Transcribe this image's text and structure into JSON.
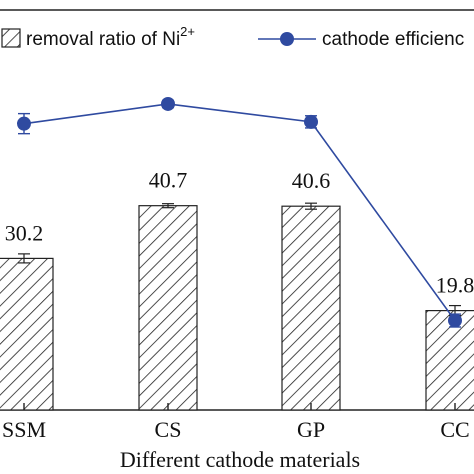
{
  "chart_data": {
    "type": "bar",
    "categories": [
      "SSM",
      "CS",
      "GP",
      "CC"
    ],
    "xlabel": "Different cathode materials",
    "ylim": [
      0,
      50
    ],
    "series": [
      {
        "name": "removal ratio of Ni",
        "name_superscript": "2+",
        "kind": "bar",
        "values": [
          30.2,
          40.7,
          40.6,
          19.8
        ],
        "errors": [
          0.9,
          0.4,
          0.6,
          1.0
        ],
        "labels": [
          "30.2",
          "40.7",
          "40.6",
          "19.8"
        ],
        "fill": "hatched"
      },
      {
        "name": "cathode efficienc",
        "kind": "line",
        "values": [
          82.5,
          88.0,
          83.0,
          27.5
        ],
        "errors": [
          2.8,
          1.0,
          1.7,
          1.8
        ],
        "ylim": [
          0,
          100
        ],
        "color": "#2f4aa0"
      }
    ],
    "legend_position": "top",
    "grid": false
  }
}
